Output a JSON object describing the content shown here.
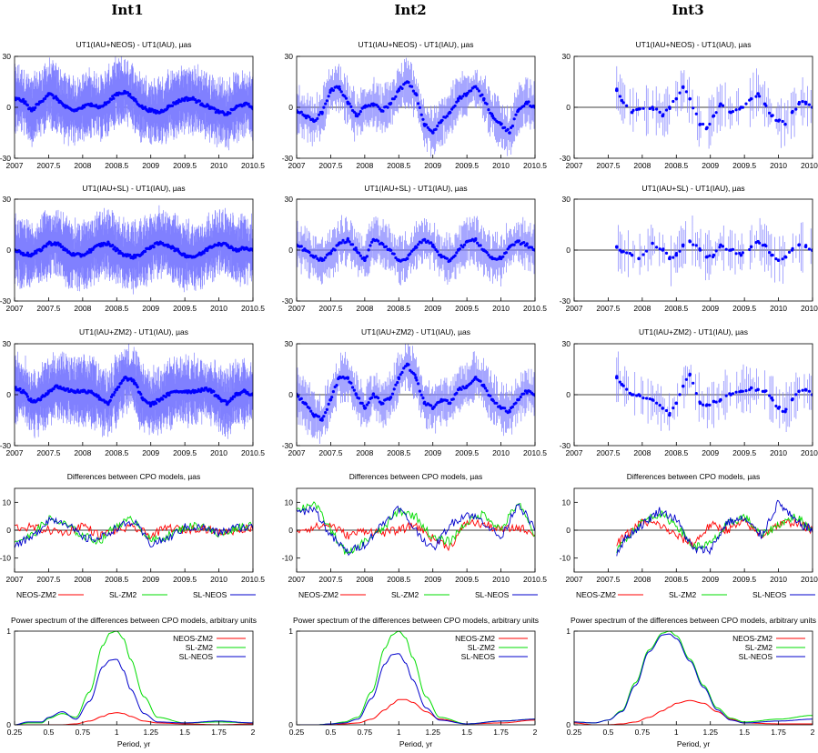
{
  "columns": [
    "Int1",
    "Int2",
    "Int3"
  ],
  "row_titles": [
    "UT1(IAU+NEOS) - UT1(IAU), µas",
    "UT1(IAU+SL) - UT1(IAU), µas",
    "UT1(IAU+ZM2) - UT1(IAU), µas",
    "Differences between CPO models, µas",
    "Power spectrum of the differences between CPO models, arbitrary units"
  ],
  "colors": {
    "series": "#0000ff",
    "errbar": "#8080ff",
    "neos_zm2": "#ff0000",
    "sl_zm2": "#00dd00",
    "sl_neos": "#0000cc"
  },
  "time_x_ticks": [
    "2007",
    "2007.5",
    "2008",
    "2008.5",
    "2009",
    "2009.5",
    "2010",
    "2010.5"
  ],
  "spec_x_ticks": [
    "0.25",
    "0.5",
    "0.75",
    "1",
    "1.25",
    "1.5",
    "1.75",
    "2"
  ],
  "spec_xlabel": "Period, yr",
  "legend": [
    "NEOS-ZM2",
    "SL-ZM2",
    "SL-NEOS"
  ],
  "chart_data": [
    {
      "type": "scatter",
      "row": "UT1(IAU+NEOS) - UT1(IAU)",
      "xlim": [
        2007,
        2010.5
      ],
      "ylim": [
        -30,
        30
      ],
      "yticks": [
        -30,
        0,
        30
      ],
      "columns": {
        "Int1": {
          "x": [
            2007.0,
            2007.125,
            2007.25,
            2007.375,
            2007.5,
            2007.625,
            2007.75,
            2007.875,
            2008.0,
            2008.125,
            2008.25,
            2008.375,
            2008.5,
            2008.625,
            2008.75,
            2008.875,
            2009.0,
            2009.125,
            2009.25,
            2009.375,
            2009.5,
            2009.625,
            2009.75,
            2009.875,
            2010.0,
            2010.125,
            2010.25,
            2010.375,
            2010.5
          ],
          "y": [
            5,
            4,
            -2,
            3,
            8,
            5,
            0,
            -2,
            0,
            2,
            0,
            3,
            8,
            9,
            5,
            0,
            -2,
            -3,
            0,
            3,
            5,
            5,
            2,
            0,
            -3,
            -4,
            0,
            2,
            0
          ]
        },
        "Int2": {
          "x": [
            2007.0,
            2007.125,
            2007.25,
            2007.375,
            2007.5,
            2007.625,
            2007.75,
            2007.875,
            2008.0,
            2008.125,
            2008.25,
            2008.375,
            2008.5,
            2008.625,
            2008.75,
            2008.875,
            2009.0,
            2009.125,
            2009.25,
            2009.375,
            2009.5,
            2009.625,
            2009.75,
            2009.875,
            2010.0,
            2010.125,
            2010.25,
            2010.375,
            2010.5
          ],
          "y": [
            -2,
            -5,
            -8,
            -3,
            10,
            12,
            3,
            -5,
            0,
            2,
            -2,
            2,
            10,
            15,
            8,
            -10,
            -15,
            -8,
            -3,
            5,
            8,
            12,
            5,
            -5,
            -10,
            -15,
            -2,
            3,
            0
          ]
        },
        "Int3": {
          "x": [
            2007.625,
            2007.7,
            2007.85,
            2007.95,
            2008.15,
            2008.3,
            2008.4,
            2008.5,
            2008.6,
            2008.7,
            2008.85,
            2008.95,
            2009.05,
            2009.15,
            2009.3,
            2009.45,
            2009.6,
            2009.7,
            2009.8,
            2009.9,
            2010.0,
            2010.1,
            2010.2,
            2010.3,
            2010.4,
            2010.5
          ],
          "y": [
            10,
            4,
            -3,
            -1,
            0,
            -5,
            0,
            5,
            12,
            5,
            -10,
            -12,
            -5,
            2,
            -3,
            0,
            5,
            8,
            2,
            -5,
            -8,
            -10,
            -3,
            2,
            3,
            0
          ]
        }
      }
    },
    {
      "type": "scatter",
      "row": "UT1(IAU+SL) - UT1(IAU)",
      "xlim": [
        2007,
        2010.5
      ],
      "ylim": [
        -30,
        30
      ],
      "yticks": [
        -30,
        0,
        30
      ],
      "columns": {
        "Int1": {
          "x": [
            2007.0,
            2007.125,
            2007.25,
            2007.375,
            2007.5,
            2007.625,
            2007.75,
            2007.875,
            2008.0,
            2008.125,
            2008.25,
            2008.375,
            2008.5,
            2008.625,
            2008.75,
            2008.875,
            2009.0,
            2009.125,
            2009.25,
            2009.375,
            2009.5,
            2009.625,
            2009.75,
            2009.875,
            2010.0,
            2010.125,
            2010.25,
            2010.375,
            2010.5
          ],
          "y": [
            0,
            -2,
            -3,
            0,
            4,
            4,
            0,
            -3,
            -3,
            0,
            3,
            4,
            0,
            -3,
            -4,
            -2,
            2,
            4,
            3,
            0,
            -3,
            -4,
            -2,
            2,
            4,
            3,
            0,
            1,
            0
          ]
        },
        "Int2": {
          "x": [
            2007.0,
            2007.125,
            2007.25,
            2007.375,
            2007.5,
            2007.625,
            2007.75,
            2007.875,
            2008.0,
            2008.125,
            2008.25,
            2008.375,
            2008.5,
            2008.625,
            2008.75,
            2008.875,
            2009.0,
            2009.125,
            2009.25,
            2009.375,
            2009.5,
            2009.625,
            2009.75,
            2009.875,
            2010.0,
            2010.125,
            2010.25,
            2010.375,
            2010.5
          ],
          "y": [
            3,
            0,
            -4,
            -6,
            -2,
            4,
            6,
            0,
            -6,
            6,
            4,
            0,
            -6,
            -5,
            2,
            6,
            3,
            -4,
            -6,
            0,
            5,
            6,
            0,
            -5,
            -5,
            2,
            5,
            3,
            0
          ]
        },
        "Int3": {
          "x": [
            2007.625,
            2007.7,
            2007.85,
            2007.95,
            2008.15,
            2008.3,
            2008.4,
            2008.5,
            2008.6,
            2008.7,
            2008.85,
            2008.95,
            2009.05,
            2009.15,
            2009.3,
            2009.45,
            2009.6,
            2009.7,
            2009.8,
            2009.9,
            2010.0,
            2010.1,
            2010.2,
            2010.3,
            2010.4,
            2010.5
          ],
          "y": [
            2,
            -1,
            -3,
            -5,
            4,
            0,
            -5,
            -3,
            3,
            5,
            0,
            -4,
            -3,
            3,
            0,
            -3,
            2,
            5,
            3,
            -3,
            -6,
            -4,
            0,
            3,
            2,
            0
          ]
        }
      }
    },
    {
      "type": "scatter",
      "row": "UT1(IAU+ZM2) - UT1(IAU)",
      "xlim": [
        2007,
        2010.5
      ],
      "ylim": [
        -30,
        30
      ],
      "yticks": [
        -30,
        0,
        30
      ],
      "columns": {
        "Int1": {
          "x": [
            2007.0,
            2007.125,
            2007.25,
            2007.375,
            2007.5,
            2007.625,
            2007.75,
            2007.875,
            2008.0,
            2008.125,
            2008.25,
            2008.375,
            2008.5,
            2008.625,
            2008.75,
            2008.875,
            2009.0,
            2009.125,
            2009.25,
            2009.375,
            2009.5,
            2009.625,
            2009.75,
            2009.875,
            2010.0,
            2010.125,
            2010.25,
            2010.375,
            2010.5
          ],
          "y": [
            4,
            2,
            -4,
            -3,
            2,
            5,
            3,
            2,
            2,
            2,
            -2,
            -5,
            3,
            10,
            8,
            -2,
            -6,
            -3,
            0,
            2,
            2,
            2,
            3,
            3,
            -2,
            -5,
            0,
            2,
            0
          ]
        },
        "Int2": {
          "x": [
            2007.0,
            2007.125,
            2007.25,
            2007.375,
            2007.5,
            2007.625,
            2007.75,
            2007.875,
            2008.0,
            2008.125,
            2008.25,
            2008.375,
            2008.5,
            2008.625,
            2008.75,
            2008.875,
            2009.0,
            2009.125,
            2009.25,
            2009.375,
            2009.5,
            2009.625,
            2009.75,
            2009.875,
            2010.0,
            2010.125,
            2010.25,
            2010.375,
            2010.5
          ],
          "y": [
            0,
            -5,
            -12,
            -15,
            -3,
            10,
            10,
            0,
            -8,
            0,
            -5,
            -2,
            10,
            18,
            10,
            -5,
            -8,
            -3,
            -5,
            3,
            5,
            10,
            5,
            -3,
            -8,
            -10,
            -3,
            2,
            0
          ]
        },
        "Int3": {
          "x": [
            2007.625,
            2007.7,
            2007.85,
            2007.95,
            2008.15,
            2008.3,
            2008.4,
            2008.5,
            2008.6,
            2008.7,
            2008.85,
            2008.95,
            2009.05,
            2009.15,
            2009.3,
            2009.45,
            2009.6,
            2009.7,
            2009.8,
            2009.9,
            2010.0,
            2010.1,
            2010.2,
            2010.3,
            2010.4,
            2010.5
          ],
          "y": [
            10,
            6,
            0,
            0,
            -3,
            -8,
            -12,
            -5,
            5,
            12,
            -5,
            -6,
            -4,
            -3,
            0,
            2,
            4,
            3,
            2,
            -2,
            -8,
            -10,
            -3,
            2,
            3,
            0
          ]
        }
      }
    },
    {
      "type": "line",
      "row": "Differences between CPO models",
      "xlim": [
        2007,
        2010.5
      ],
      "ylim": [
        -15,
        15
      ],
      "yticks": [
        -10,
        0,
        10
      ],
      "series_names": [
        "NEOS-ZM2",
        "SL-ZM2",
        "SL-NEOS"
      ],
      "columns": {
        "Int1": {
          "x": [
            2007.0,
            2007.25,
            2007.5,
            2007.75,
            2008.0,
            2008.25,
            2008.5,
            2008.75,
            2009.0,
            2009.25,
            2009.5,
            2009.75,
            2010.0,
            2010.25,
            2010.5
          ],
          "NEOS-ZM2": [
            1,
            1,
            0,
            -1,
            2,
            -2,
            0,
            1,
            -2,
            1,
            0,
            1,
            -1,
            0,
            1
          ],
          "SL-ZM2": [
            -4,
            -2,
            4,
            2,
            -2,
            -4,
            2,
            4,
            -4,
            -2,
            1,
            2,
            -2,
            1,
            2
          ],
          "SL-NEOS": [
            -5,
            -3,
            4,
            3,
            -3,
            -3,
            1,
            3,
            -5,
            -3,
            1,
            1,
            -1,
            1,
            1
          ]
        },
        "Int2": {
          "x": [
            2007.0,
            2007.25,
            2007.5,
            2007.75,
            2008.0,
            2008.25,
            2008.5,
            2008.75,
            2009.0,
            2009.25,
            2009.5,
            2009.75,
            2010.0,
            2010.25,
            2010.5
          ],
          "NEOS-ZM2": [
            0,
            1,
            2,
            -2,
            0,
            -1,
            0,
            2,
            -3,
            -6,
            3,
            2,
            0,
            1,
            -1
          ],
          "SL-ZM2": [
            7,
            10,
            0,
            -9,
            -4,
            0,
            7,
            5,
            -3,
            -4,
            3,
            6,
            0,
            10,
            -2
          ],
          "SL-NEOS": [
            6,
            8,
            -2,
            -8,
            -5,
            2,
            8,
            0,
            -7,
            2,
            6,
            3,
            -3,
            10,
            0
          ]
        },
        "Int3": {
          "x": [
            2007.625,
            2007.75,
            2008.0,
            2008.25,
            2008.5,
            2008.75,
            2009.0,
            2009.25,
            2009.5,
            2009.75,
            2010.0,
            2010.25,
            2010.5
          ],
          "NEOS-ZM2": [
            -5,
            -2,
            3,
            2,
            -2,
            -5,
            2,
            0,
            3,
            -2,
            2,
            3,
            0
          ],
          "SL-ZM2": [
            -8,
            -3,
            3,
            6,
            2,
            -6,
            -5,
            2,
            5,
            -2,
            2,
            5,
            0
          ],
          "SL-NEOS": [
            -8,
            -3,
            2,
            7,
            4,
            -7,
            -7,
            3,
            4,
            -2,
            10,
            3,
            0
          ]
        }
      }
    },
    {
      "type": "line",
      "row": "Power spectrum of the differences between CPO models",
      "xlim": [
        0.25,
        2
      ],
      "ylim": [
        0,
        1
      ],
      "yticks": [
        0,
        1
      ],
      "series_names": [
        "NEOS-ZM2",
        "SL-ZM2",
        "SL-NEOS"
      ],
      "columns": {
        "Int1": {
          "x": [
            0.25,
            0.35,
            0.45,
            0.5,
            0.6,
            0.7,
            0.8,
            0.9,
            0.95,
            1.0,
            1.05,
            1.1,
            1.2,
            1.3,
            1.5,
            1.75,
            2.0
          ],
          "NEOS-ZM2": [
            0.0,
            0.0,
            0.0,
            0.0,
            0.0,
            0.01,
            0.04,
            0.09,
            0.12,
            0.13,
            0.12,
            0.09,
            0.04,
            0.02,
            0.01,
            0.0,
            0.01
          ],
          "SL-ZM2": [
            0.0,
            0.02,
            0.02,
            0.07,
            0.12,
            0.08,
            0.35,
            0.85,
            0.98,
            1.0,
            0.92,
            0.7,
            0.3,
            0.08,
            0.02,
            0.03,
            0.02
          ],
          "SL-NEOS": [
            0.0,
            0.03,
            0.03,
            0.08,
            0.14,
            0.06,
            0.25,
            0.62,
            0.69,
            0.7,
            0.58,
            0.38,
            0.12,
            0.03,
            0.02,
            0.04,
            0.02
          ]
        },
        "Int2": {
          "x": [
            0.25,
            0.4,
            0.5,
            0.6,
            0.7,
            0.8,
            0.9,
            0.95,
            1.0,
            1.05,
            1.1,
            1.2,
            1.3,
            1.5,
            1.75,
            2.0
          ],
          "NEOS-ZM2": [
            0.0,
            0.0,
            0.0,
            0.01,
            0.02,
            0.06,
            0.16,
            0.22,
            0.27,
            0.27,
            0.24,
            0.14,
            0.06,
            0.01,
            0.02,
            0.05
          ],
          "SL-ZM2": [
            0.0,
            0.0,
            0.01,
            0.03,
            0.08,
            0.35,
            0.82,
            0.96,
            1.0,
            0.93,
            0.72,
            0.3,
            0.08,
            0.01,
            0.04,
            0.06
          ],
          "SL-NEOS": [
            0.0,
            0.0,
            0.01,
            0.02,
            0.06,
            0.28,
            0.65,
            0.75,
            0.76,
            0.66,
            0.48,
            0.18,
            0.05,
            0.01,
            0.04,
            0.06
          ]
        },
        "Int3": {
          "x": [
            0.25,
            0.4,
            0.5,
            0.6,
            0.7,
            0.8,
            0.9,
            0.95,
            1.0,
            1.1,
            1.2,
            1.3,
            1.4,
            1.5,
            1.75,
            2.0
          ],
          "NEOS-ZM2": [
            0.02,
            0.0,
            0.0,
            0.01,
            0.03,
            0.08,
            0.15,
            0.19,
            0.23,
            0.26,
            0.23,
            0.14,
            0.06,
            0.02,
            0.01,
            0.01
          ],
          "SL-ZM2": [
            0.03,
            0.02,
            0.05,
            0.15,
            0.45,
            0.8,
            0.98,
            1.0,
            0.95,
            0.7,
            0.42,
            0.18,
            0.07,
            0.03,
            0.06,
            0.1
          ],
          "SL-NEOS": [
            0.03,
            0.02,
            0.05,
            0.14,
            0.42,
            0.78,
            0.96,
            0.97,
            0.92,
            0.68,
            0.4,
            0.16,
            0.05,
            0.02,
            0.04,
            0.06
          ]
        }
      }
    }
  ]
}
